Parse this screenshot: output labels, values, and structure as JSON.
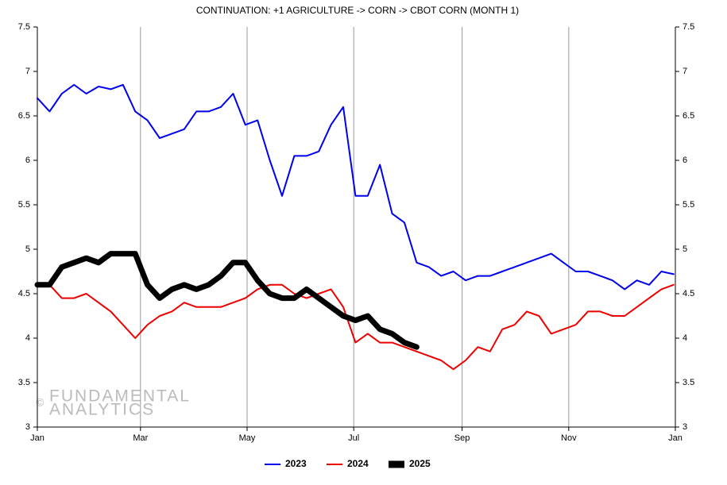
{
  "chart_data": {
    "type": "line",
    "title": "CONTINUATION: +1 AGRICULTURE -> CORN -> CBOT CORN (MONTH 1)",
    "watermark": [
      "©",
      "FUNDAMENTAL",
      "ANALYTICS"
    ],
    "x": [
      0,
      7,
      14,
      21,
      28,
      35,
      42,
      49,
      56,
      63,
      70,
      77,
      84,
      91,
      98,
      105,
      112,
      119,
      126,
      133,
      140,
      147,
      154,
      161,
      168,
      175,
      182,
      189,
      196,
      203,
      210,
      217,
      224,
      231,
      238,
      245,
      252,
      259,
      266,
      273,
      280,
      287,
      294,
      301,
      308,
      315,
      322,
      329,
      336,
      343,
      350,
      357,
      364
    ],
    "xlim": [
      0,
      365
    ],
    "xticks": [
      {
        "value": 0,
        "label": "Jan"
      },
      {
        "value": 59,
        "label": "Mar"
      },
      {
        "value": 120,
        "label": "May"
      },
      {
        "value": 181,
        "label": "Jul"
      },
      {
        "value": 243,
        "label": "Sep"
      },
      {
        "value": 304,
        "label": "Nov"
      },
      {
        "value": 365,
        "label": "Jan"
      }
    ],
    "ylim": [
      3,
      7.5
    ],
    "yticks": [
      3,
      3.5,
      4,
      4.5,
      5,
      5.5,
      6,
      6.5,
      7,
      7.5
    ],
    "grid": "x",
    "legend": "bottom",
    "series": [
      {
        "name": "2023",
        "color": "#0000ee",
        "line_width": 2,
        "values": [
          6.7,
          6.55,
          6.75,
          6.85,
          6.75,
          6.83,
          6.8,
          6.85,
          6.55,
          6.45,
          6.25,
          6.3,
          6.35,
          6.55,
          6.55,
          6.6,
          6.75,
          6.4,
          6.45,
          6.0,
          5.6,
          6.05,
          6.05,
          6.1,
          6.4,
          6.6,
          5.6,
          5.6,
          5.95,
          5.4,
          5.3,
          4.85,
          4.8,
          4.7,
          4.75,
          4.65,
          4.7,
          4.7,
          4.75,
          4.8,
          4.85,
          4.9,
          4.95,
          4.85,
          4.75,
          4.75,
          4.7,
          4.65,
          4.55,
          4.65,
          4.6,
          4.75,
          4.72
        ]
      },
      {
        "name": "2024",
        "color": "#ee0000",
        "line_width": 2,
        "values": [
          4.6,
          4.6,
          4.45,
          4.45,
          4.5,
          4.4,
          4.3,
          4.15,
          4.0,
          4.15,
          4.25,
          4.3,
          4.4,
          4.35,
          4.35,
          4.35,
          4.4,
          4.45,
          4.55,
          4.6,
          4.6,
          4.5,
          4.45,
          4.5,
          4.55,
          4.35,
          3.95,
          4.05,
          3.95,
          3.95,
          3.9,
          3.85,
          3.8,
          3.75,
          3.65,
          3.75,
          3.9,
          3.85,
          4.1,
          4.15,
          4.3,
          4.25,
          4.05,
          4.1,
          4.15,
          4.3,
          4.3,
          4.25,
          4.25,
          4.35,
          4.45,
          4.55,
          4.6
        ]
      },
      {
        "name": "2025",
        "color": "#000000",
        "line_width": 7,
        "values": [
          4.6,
          4.6,
          4.8,
          4.85,
          4.9,
          4.85,
          4.95,
          4.95,
          4.95,
          4.6,
          4.45,
          4.55,
          4.6,
          4.55,
          4.6,
          4.7,
          4.85,
          4.85,
          4.65,
          4.5,
          4.45,
          4.45,
          4.55,
          4.45,
          4.35,
          4.25,
          4.2,
          4.25,
          4.1,
          4.05,
          3.95,
          3.9,
          null,
          null,
          null,
          null,
          null,
          null,
          null,
          null,
          null,
          null,
          null,
          null,
          null,
          null,
          null,
          null,
          null,
          null,
          null,
          null,
          null
        ]
      }
    ]
  }
}
